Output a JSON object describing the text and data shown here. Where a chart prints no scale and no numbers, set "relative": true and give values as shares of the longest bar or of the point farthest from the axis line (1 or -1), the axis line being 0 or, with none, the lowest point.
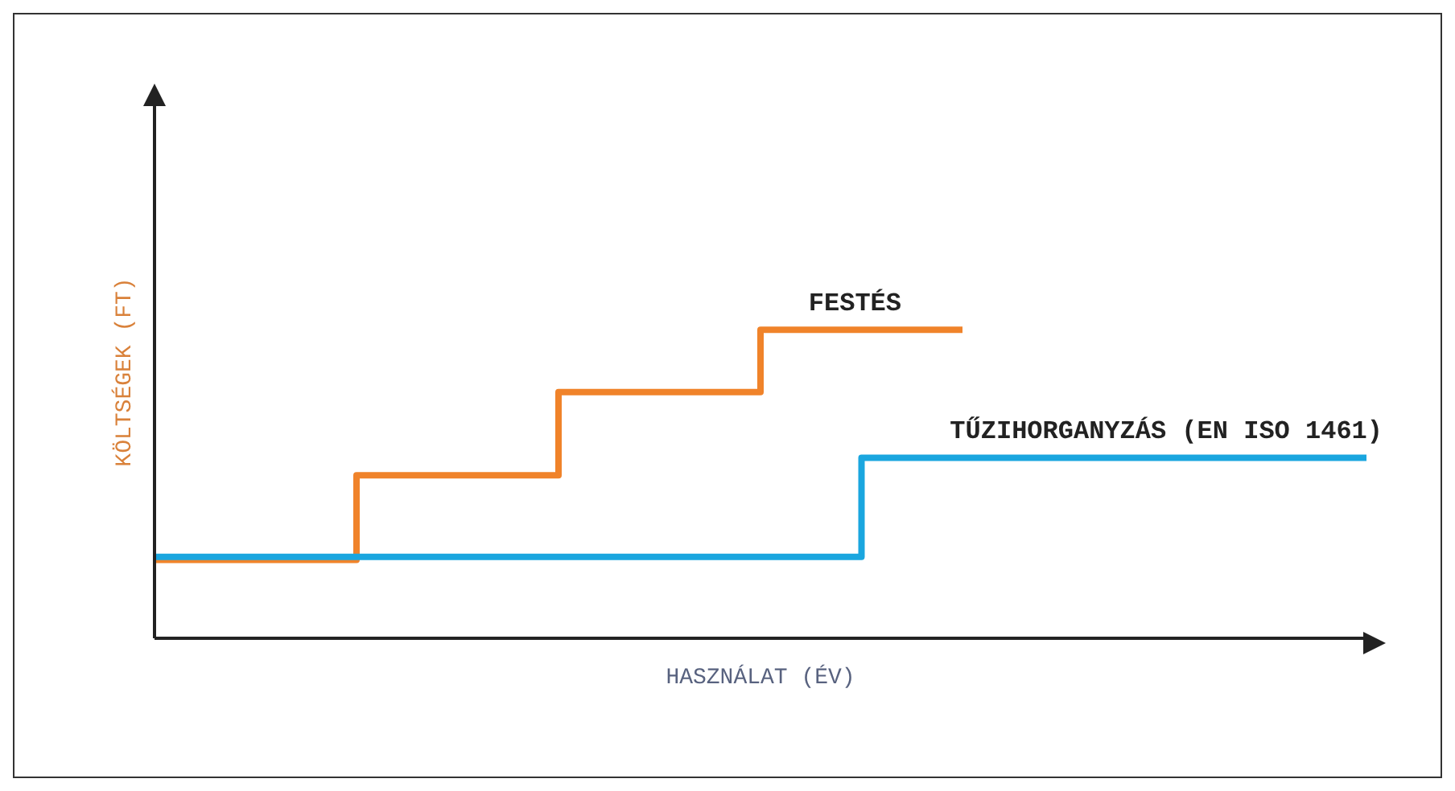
{
  "chart_data": {
    "type": "step",
    "relative": true,
    "xlabel": "HASZNÁLAT (ÉV)",
    "ylabel": "KÖLTSÉGEK (FT)",
    "categories": [
      null,
      null,
      null,
      null,
      null,
      null,
      null,
      null,
      null,
      null,
      null,
      null,
      null
    ],
    "series": [
      {
        "name": "FESTÉS",
        "color": "#f0832a",
        "values": [
          0.254,
          0.254,
          0.528,
          0.528,
          0.798,
          0.798,
          1,
          1,
          1,
          null,
          null,
          null,
          null
        ]
      },
      {
        "name": "TŰZIHORGANYZÁS (EN ISO 1461)",
        "color": "#1aa6df",
        "values": [
          0.264,
          0.264,
          0.264,
          0.264,
          0.264,
          0.264,
          0.264,
          0.585,
          0.585,
          0.585,
          0.585,
          0.585,
          0.585
        ]
      }
    ],
    "grid": false,
    "legend": false,
    "marker": "none",
    "line_style": "solid"
  }
}
